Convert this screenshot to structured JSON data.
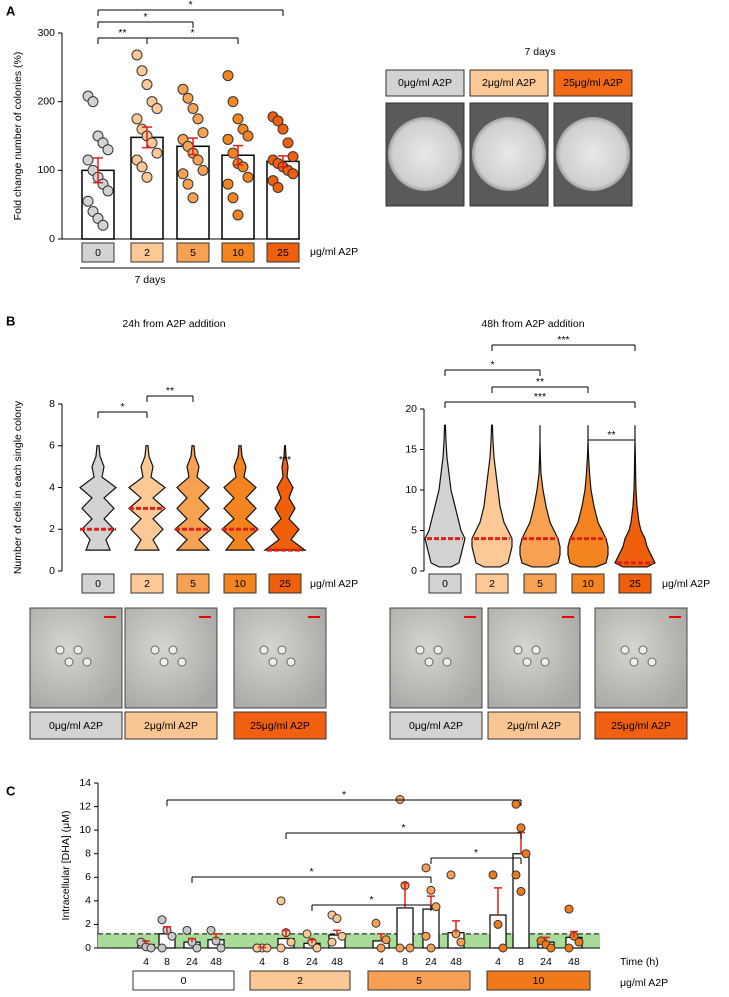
{
  "labels": {
    "a": "A",
    "b": "B",
    "c": "C"
  },
  "photos": {
    "title": "7 days",
    "captions": [
      "0μg/ml A2P",
      "2μg/ml A2P",
      "25μg/ml A2P"
    ]
  },
  "micrographs": {
    "captions_24h": [
      "0μg/ml A2P",
      "2μg/ml A2P",
      "25μg/ml A2P"
    ],
    "captions_48h": [
      "0μg/ml A2P",
      "2μg/ml A2P",
      "25μg/ml A2P"
    ]
  },
  "chart_data": [
    {
      "type": "bar",
      "ylabel": "Fold change number of colonies (%)",
      "xlabel": "μg/ml A2P",
      "footer": "7 days",
      "categories": [
        "0",
        "2",
        "5",
        "10",
        "25"
      ],
      "colors": [
        "#d3d3d3",
        "#fbc896",
        "#f7a252",
        "#f3841f",
        "#ef5f0c"
      ],
      "values": [
        100,
        148,
        135,
        122,
        113
      ],
      "errors": [
        18,
        15,
        12,
        14,
        8
      ],
      "points": [
        [
          208,
          200,
          150,
          140,
          130,
          115,
          100,
          90,
          80,
          70,
          55,
          40,
          30,
          20
        ],
        [
          268,
          245,
          225,
          200,
          190,
          175,
          160,
          150,
          140,
          125,
          115,
          105,
          90
        ],
        [
          218,
          205,
          190,
          175,
          155,
          145,
          135,
          125,
          115,
          100,
          95,
          80,
          60
        ],
        [
          238,
          200,
          175,
          160,
          150,
          145,
          125,
          110,
          105,
          90,
          80,
          60,
          35
        ],
        [
          178,
          172,
          160,
          140,
          120,
          115,
          110,
          105,
          100,
          95,
          85,
          75
        ]
      ],
      "ylim": [
        0,
        300
      ],
      "yticks": [
        0,
        100,
        200,
        300
      ],
      "brackets": [
        {
          "between": [
            0,
            1
          ],
          "label": "**"
        },
        {
          "between": [
            0,
            2
          ],
          "label": "*"
        },
        {
          "between": [
            1,
            3
          ],
          "label": "*"
        },
        {
          "between": [
            0,
            4
          ],
          "label": "*"
        }
      ]
    },
    {
      "type": "violin",
      "title": "24h from A2P addition",
      "ylabel": "Number of cells in each single colony",
      "xlabel": "μg/ml A2P",
      "categories": [
        "0",
        "2",
        "5",
        "10",
        "25"
      ],
      "colors": [
        "#d3d3d3",
        "#fbc896",
        "#f7a252",
        "#f3841f",
        "#ef5f0c"
      ],
      "medians": [
        2,
        3,
        2,
        2,
        1
      ],
      "levels": [
        1,
        1.5,
        2,
        2.5,
        3,
        3.5,
        4,
        4.5,
        5,
        5.5,
        6
      ],
      "density": [
        [
          0.6,
          0.4,
          0.8,
          0.3,
          0.8,
          0.3,
          0.9,
          0.2,
          0.3,
          0.1,
          0.05
        ],
        [
          0.6,
          0.3,
          0.8,
          0.3,
          0.9,
          0.3,
          0.9,
          0.2,
          0.3,
          0.1,
          0.05
        ],
        [
          0.8,
          0.3,
          0.9,
          0.3,
          0.8,
          0.3,
          0.8,
          0.2,
          0.3,
          0.1,
          0.05
        ],
        [
          0.7,
          0.3,
          0.9,
          0.3,
          0.8,
          0.3,
          0.8,
          0.2,
          0.3,
          0.1,
          0.05
        ],
        [
          1.0,
          0.3,
          0.7,
          0.2,
          0.5,
          0.2,
          0.4,
          0.1,
          0.15,
          0.05,
          0.02
        ]
      ],
      "ylim": [
        0,
        8
      ],
      "yticks": [
        0,
        2,
        4,
        6,
        8
      ],
      "brackets": [
        {
          "between": [
            0,
            1
          ],
          "label": "*"
        },
        {
          "between": [
            1,
            2
          ],
          "label": "**"
        },
        {
          "between": [
            4,
            4
          ],
          "label": "***"
        }
      ]
    },
    {
      "type": "violin",
      "title": "48h from A2P addition",
      "xlabel": "μg/ml A2P",
      "categories": [
        "0",
        "2",
        "5",
        "10",
        "25"
      ],
      "colors": [
        "#d3d3d3",
        "#fbc896",
        "#f7a252",
        "#f3841f",
        "#ef5f0c"
      ],
      "medians": [
        4,
        4,
        4,
        4,
        1
      ],
      "levels": [
        0.5,
        1,
        2,
        3,
        4,
        5,
        6,
        8,
        10,
        12,
        14,
        16,
        18
      ],
      "density": [
        [
          0.3,
          0.7,
          0.8,
          0.9,
          1,
          0.8,
          0.7,
          0.5,
          0.3,
          0.2,
          0.1,
          0.05,
          0.02
        ],
        [
          0.4,
          0.8,
          0.9,
          1,
          1,
          0.8,
          0.6,
          0.4,
          0.3,
          0.2,
          0.1,
          0.05,
          0.02
        ],
        [
          0.4,
          0.9,
          1,
          1,
          0.9,
          0.7,
          0.5,
          0.3,
          0.15,
          0.05,
          0.02,
          0,
          0
        ],
        [
          0.4,
          0.9,
          1,
          1,
          0.9,
          0.7,
          0.5,
          0.3,
          0.15,
          0.08,
          0.03,
          0,
          0
        ],
        [
          0.6,
          1,
          0.8,
          0.6,
          0.5,
          0.3,
          0.2,
          0.1,
          0.05,
          0.03,
          0.02,
          0,
          0
        ]
      ],
      "ylim": [
        0,
        20
      ],
      "yticks": [
        0,
        5,
        10,
        15,
        20
      ],
      "brackets": [
        {
          "between": [
            1,
            4
          ],
          "label": "***"
        },
        {
          "between": [
            0,
            2
          ],
          "label": "*"
        },
        {
          "between": [
            1,
            3
          ],
          "label": "**"
        },
        {
          "between": [
            0,
            4
          ],
          "label": "***"
        },
        {
          "between": [
            3,
            4
          ],
          "label": "**"
        }
      ]
    },
    {
      "type": "grouped_bar",
      "ylabel": "Intracellular [DHA] (μM)",
      "time_label": "Time (h)",
      "xlabel": "μg/ml A2P",
      "groups": [
        "0",
        "2",
        "5",
        "10"
      ],
      "times": [
        "4",
        "8",
        "24",
        "48"
      ],
      "colors": [
        "#ffffff",
        "#fbc795",
        "#f7a055",
        "#f07a1a"
      ],
      "point_colors": [
        "#c8c8c8",
        "#fbc795",
        "#f7a055",
        "#f07a1a"
      ],
      "values": [
        [
          0.3,
          1.2,
          0.5,
          0.7
        ],
        [
          0.05,
          0.8,
          0.4,
          1.1
        ],
        [
          0.6,
          3.4,
          3.3,
          1.3
        ],
        [
          2.8,
          8.0,
          0.5,
          0.9
        ]
      ],
      "errors": [
        [
          0.3,
          0.6,
          0.3,
          0.5
        ],
        [
          0,
          0.7,
          0.3,
          0.4
        ],
        [
          0.6,
          2.1,
          1.1,
          1.0
        ],
        [
          2.3,
          1.8,
          0.4,
          0.5
        ]
      ],
      "points": [
        [
          [
            0.5,
            0.1,
            0
          ],
          [
            2.4,
            1.5,
            1,
            0
          ],
          [
            1.5,
            0.5,
            0
          ],
          [
            1.5,
            0.6,
            0
          ]
        ],
        [
          [
            0,
            0,
            0,
            0
          ],
          [
            4.0,
            1.3,
            0.5,
            0
          ],
          [
            1.2,
            0.5,
            0
          ],
          [
            2.8,
            2.5,
            1,
            0.5
          ]
        ],
        [
          [
            2.1,
            0,
            0.7
          ],
          [
            12.6,
            5.3,
            0,
            0
          ],
          [
            6.8,
            4.9,
            3.5,
            1,
            0
          ],
          [
            6.2,
            1.2,
            0.5
          ]
        ],
        [
          [
            6.2,
            2,
            0
          ],
          [
            12.2,
            10.2,
            8.0,
            6.2,
            4.8
          ],
          [
            0.6,
            0.3,
            0
          ],
          [
            3.3,
            1,
            0.5,
            0
          ]
        ]
      ],
      "baseline_band": [
        0,
        1.2
      ],
      "ylim": [
        0,
        14
      ],
      "yticks": [
        0,
        2,
        4,
        6,
        8,
        10,
        12,
        14
      ],
      "brackets": [
        {
          "between": [
            [
              0,
              1
            ],
            [
              3,
              1
            ]
          ],
          "label": "*"
        },
        {
          "between": [
            [
              1,
              1
            ],
            [
              3,
              1
            ]
          ],
          "label": "*"
        },
        {
          "between": [
            [
              2,
              2
            ],
            [
              3,
              1
            ]
          ],
          "label": "*"
        },
        {
          "between": [
            [
              0,
              2
            ],
            [
              2,
              2
            ]
          ],
          "label": "*"
        },
        {
          "between": [
            [
              1,
              2
            ],
            [
              2,
              2
            ]
          ],
          "label": "*"
        }
      ]
    }
  ]
}
